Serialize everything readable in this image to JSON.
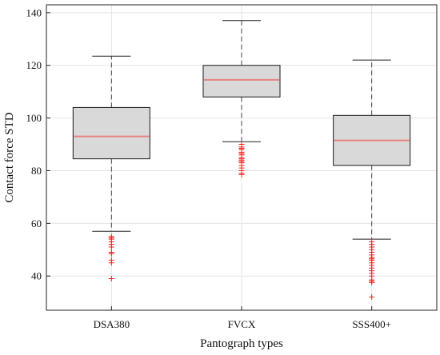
{
  "chart_data": {
    "type": "boxplot",
    "title": "",
    "xlabel": "Pantograph types",
    "ylabel": "Contact force STD",
    "ylim": [
      27,
      143
    ],
    "yticks": [
      40,
      60,
      80,
      100,
      120,
      140
    ],
    "grid": true,
    "categories": [
      "DSA380",
      "FVCX",
      "SSS400+"
    ],
    "boxes": [
      {
        "category": "DSA380",
        "whisker_low": 57,
        "q1": 84.5,
        "median": 93,
        "q3": 104,
        "whisker_high": 123.5,
        "outliers": [
          55,
          54.5,
          54,
          53,
          52,
          51,
          49,
          48.5,
          46,
          45,
          39
        ]
      },
      {
        "category": "FVCX",
        "whisker_low": 91,
        "q1": 108,
        "median": 114.5,
        "q3": 120,
        "whisker_high": 137,
        "outliers": [
          90,
          89,
          88.5,
          88,
          87,
          86.5,
          86,
          85,
          84.5,
          84,
          83.5,
          83,
          82,
          81,
          80,
          79,
          78.5
        ]
      },
      {
        "category": "SSS400+",
        "whisker_low": 54,
        "q1": 82,
        "median": 91.5,
        "q3": 101,
        "whisker_high": 122,
        "outliers": [
          53,
          52,
          51,
          50,
          49,
          48,
          47,
          46.5,
          46,
          45,
          44,
          43,
          42,
          41,
          40,
          38.5,
          38,
          37.5,
          32
        ]
      }
    ],
    "colors": {
      "box_fill": "#d9d9d9",
      "box_edge": "#1a1a1a",
      "median": "#e8837f",
      "whisker": "#444444",
      "outlier": "#ff2020",
      "grid": "#e3e3e3"
    }
  }
}
